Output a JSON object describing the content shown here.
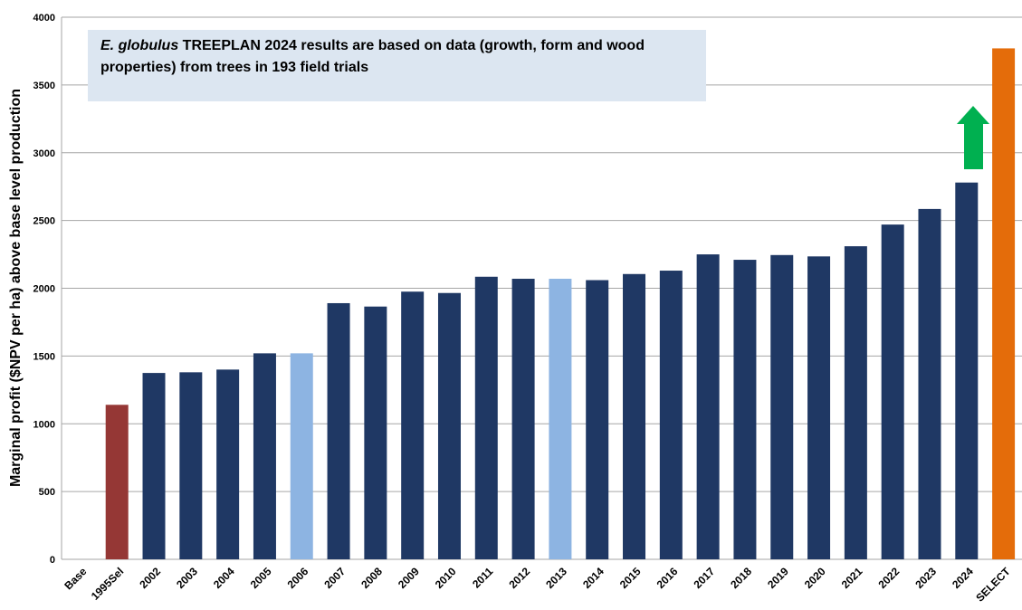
{
  "chart_data": {
    "type": "bar",
    "y_label": "Marginal profit ($NPV per ha) above base level production",
    "annotation": {
      "italic": "E. globulus",
      "text": " TREEPLAN 2024 results are based on data (growth, form and wood properties) from trees in 193 field trials"
    },
    "categories": [
      "Base",
      "1995Sel",
      "2002",
      "2003",
      "2004",
      "2005",
      "2006",
      "2007",
      "2008",
      "2009",
      "2010",
      "2011",
      "2012",
      "2013",
      "2014",
      "2015",
      "2016",
      "2017",
      "2018",
      "2019",
      "2020",
      "2021",
      "2022",
      "2023",
      "2024",
      "SELECT"
    ],
    "values": [
      0,
      1140,
      1375,
      1380,
      1400,
      1520,
      1520,
      1890,
      1865,
      1975,
      1965,
      2085,
      2070,
      2070,
      2060,
      2105,
      2130,
      2250,
      2210,
      2245,
      2235,
      2310,
      2470,
      2585,
      2780,
      3770
    ],
    "colors": [
      "#1f3864",
      "#953735",
      "#1f3864",
      "#1f3864",
      "#1f3864",
      "#1f3864",
      "#8db4e2",
      "#1f3864",
      "#1f3864",
      "#1f3864",
      "#1f3864",
      "#1f3864",
      "#1f3864",
      "#8db4e2",
      "#1f3864",
      "#1f3864",
      "#1f3864",
      "#1f3864",
      "#1f3864",
      "#1f3864",
      "#1f3864",
      "#1f3864",
      "#1f3864",
      "#1f3864",
      "#1f3864",
      "#e46c0a"
    ],
    "ylim": [
      0,
      4000
    ],
    "yticks": [
      0,
      500,
      1000,
      1500,
      2000,
      2500,
      3000,
      3500,
      4000
    ],
    "grid": true
  }
}
